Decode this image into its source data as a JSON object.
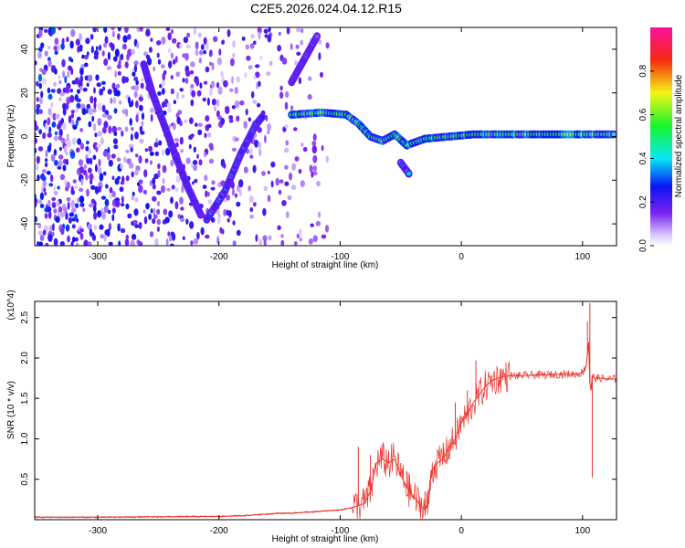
{
  "figure": {
    "title": "C2E5.2026.024.04.12.R15"
  },
  "chart_data": [
    {
      "type": "heatmap",
      "panel": "spectrogram",
      "xlabel": "Height of straight line (km)",
      "ylabel": "Frequency (Hz)",
      "xlim": [
        -352,
        128
      ],
      "ylim": [
        -50,
        50
      ],
      "xticks": [
        -300,
        -200,
        -100,
        0,
        100
      ],
      "xtick_labels": [
        "-300",
        "-200",
        "-100",
        "0",
        "100"
      ],
      "yticks": [
        -40,
        -20,
        0,
        20,
        40
      ],
      "ytick_labels": [
        "-40",
        "-20",
        "0",
        "20",
        "40"
      ],
      "colorscale": "rainbow",
      "colorbar": {
        "label": "Normalized spectral amplitude",
        "range": [
          0,
          1
        ],
        "ticks": [
          0.0,
          0.2,
          0.4,
          0.6,
          0.8
        ],
        "tick_labels": [
          "0.0",
          "0.2",
          "0.4",
          "0.6",
          "0.8"
        ]
      },
      "features": [
        {
          "kind": "noise",
          "x": [
            -352,
            -110
          ],
          "y": [
            -50,
            50
          ],
          "amplitude": 0.12
        },
        {
          "kind": "track",
          "points": [
            [
              -262,
              33
            ],
            [
              -255,
              20
            ],
            [
              -245,
              5
            ],
            [
              -235,
              -10
            ],
            [
              -225,
              -24
            ],
            [
              -214,
              -37
            ]
          ],
          "amplitude": 0.2
        },
        {
          "kind": "track",
          "points": [
            [
              -210,
              -38
            ],
            [
              -195,
              -25
            ],
            [
              -182,
              -8
            ],
            [
              -170,
              5
            ],
            [
              -163,
              10
            ]
          ],
          "amplitude": 0.3
        },
        {
          "kind": "track",
          "points": [
            [
              -140,
              10
            ],
            [
              -115,
              11
            ],
            [
              -95,
              10
            ],
            [
              -85,
              6
            ],
            [
              -75,
              0
            ],
            [
              -65,
              -2
            ],
            [
              -55,
              1
            ],
            [
              -45,
              -4
            ],
            [
              -30,
              -1
            ],
            [
              -10,
              0
            ],
            [
              10,
              1
            ],
            [
              40,
              1
            ],
            [
              70,
              1
            ],
            [
              100,
              1
            ],
            [
              128,
              1
            ]
          ],
          "amplitude": 0.55
        },
        {
          "kind": "track",
          "points": [
            [
              -50,
              -12
            ],
            [
              -42,
              -18
            ]
          ],
          "amplitude": 0.3
        },
        {
          "kind": "track",
          "points": [
            [
              -140,
              25
            ],
            [
              -118,
              47
            ]
          ],
          "amplitude": 0.15
        }
      ]
    },
    {
      "type": "line",
      "panel": "snr",
      "xlabel": "Height of straight line (km)",
      "ylabel": "SNR (10 * v/v)",
      "y_multiplier": "(x10^4)",
      "xlim": [
        -352,
        128
      ],
      "ylim": [
        0,
        2.7
      ],
      "xticks": [
        -300,
        -200,
        -100,
        0,
        100
      ],
      "xtick_labels": [
        "-300",
        "-200",
        "-100",
        "0",
        "100"
      ],
      "yticks": [
        0.5,
        1.0,
        1.5,
        2.0,
        2.5
      ],
      "ytick_labels": [
        "0.5",
        "1.0",
        "1.5",
        "2.0",
        "2.5"
      ],
      "line_color": "#e8352c",
      "series": [
        {
          "x": [
            -352,
            -300,
            -250,
            -200,
            -180,
            -160,
            -150,
            -140,
            -120,
            -100,
            -90,
            -80,
            -75,
            -70,
            -65,
            -60,
            -55,
            -50,
            -45,
            -40,
            -35,
            -30,
            -27,
            -25,
            -20,
            -15,
            -10,
            -5,
            0,
            5,
            10,
            15,
            20,
            25,
            30,
            35,
            40,
            50,
            60,
            70,
            80,
            90,
            95,
            100,
            103,
            105,
            106,
            107,
            108,
            110,
            115,
            120,
            128
          ],
          "y": [
            0.03,
            0.03,
            0.035,
            0.04,
            0.05,
            0.07,
            0.08,
            0.08,
            0.1,
            0.12,
            0.15,
            0.2,
            0.35,
            0.7,
            0.75,
            0.7,
            0.75,
            0.55,
            0.4,
            0.3,
            0.2,
            0.12,
            0.2,
            0.6,
            0.7,
            0.75,
            0.9,
            1.0,
            1.2,
            1.3,
            1.45,
            1.55,
            1.65,
            1.72,
            1.75,
            1.77,
            1.78,
            1.78,
            1.79,
            1.79,
            1.8,
            1.8,
            1.8,
            1.82,
            1.9,
            2.2,
            1.7,
            1.6,
            1.78,
            1.75,
            1.75,
            1.74,
            1.74
          ]
        }
      ],
      "spikes": [
        {
          "x": -85,
          "y": 0.9
        },
        {
          "x": -75,
          "y": 0.8
        },
        {
          "x": -60,
          "y": 0.85
        },
        {
          "x": -50,
          "y": 0.7
        },
        {
          "x": -45,
          "y": 0.6
        },
        {
          "x": -30,
          "y": 0.35
        },
        {
          "x": -15,
          "y": 0.95
        },
        {
          "x": -5,
          "y": 1.45
        },
        {
          "x": 5,
          "y": 1.6
        },
        {
          "x": 12,
          "y": 1.97
        },
        {
          "x": 20,
          "y": 1.72
        },
        {
          "x": 104,
          "y": 2.45
        },
        {
          "x": 106,
          "y": 2.68
        },
        {
          "x": 108,
          "y": 0.52
        }
      ]
    }
  ]
}
